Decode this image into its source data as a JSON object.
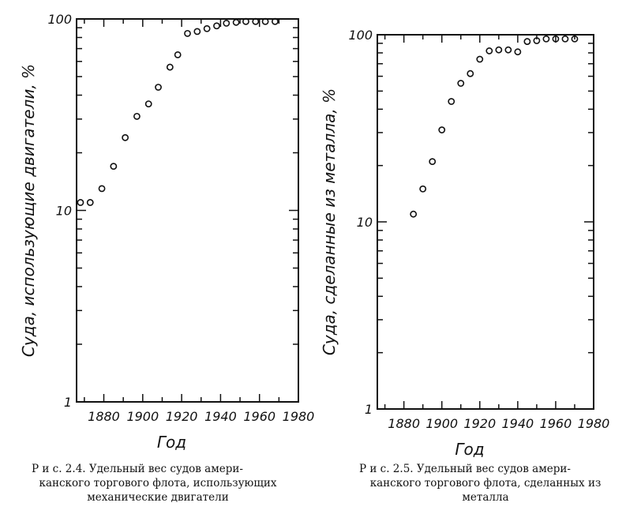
{
  "chart_data": [
    {
      "type": "scatter",
      "title": "",
      "xlabel": "Год",
      "ylabel": "Суда, использующие двигатели, %",
      "x_scale": "linear",
      "y_scale": "log",
      "xlim": [
        1866,
        1980
      ],
      "ylim": [
        1,
        100
      ],
      "x_ticks": [
        1880,
        1900,
        1920,
        1940,
        1960,
        1980
      ],
      "y_ticks": [
        1,
        10,
        100
      ],
      "x": [
        1868,
        1873,
        1879,
        1885,
        1891,
        1897,
        1903,
        1908,
        1914,
        1918,
        1923,
        1928,
        1933,
        1938,
        1943,
        1948,
        1953,
        1958,
        1963,
        1968
      ],
      "y": [
        11,
        11,
        13,
        17,
        24,
        31,
        36,
        44,
        56,
        65,
        84,
        86,
        89,
        92,
        95,
        96,
        97,
        97,
        97,
        97
      ],
      "caption": {
        "line1": "Р и с. 2.4.  Удельный вес судов амери-",
        "line2": "канского торгового флота, использующих",
        "line3": "механические двигатели"
      }
    },
    {
      "type": "scatter",
      "title": "",
      "xlabel": "Год",
      "ylabel": "Суда, сделанные из металла, %",
      "x_scale": "linear",
      "y_scale": "log",
      "xlim": [
        1866,
        1980
      ],
      "ylim": [
        1,
        100
      ],
      "x_ticks": [
        1880,
        1900,
        1920,
        1940,
        1960,
        1980
      ],
      "y_ticks": [
        1,
        10,
        100
      ],
      "x": [
        1885,
        1890,
        1895,
        1900,
        1905,
        1910,
        1915,
        1920,
        1925,
        1930,
        1935,
        1940,
        1945,
        1950,
        1955,
        1960,
        1965,
        1970
      ],
      "y": [
        11,
        15,
        21,
        31,
        44,
        55,
        62,
        74,
        82,
        83,
        83,
        81,
        92,
        93,
        95,
        95,
        95,
        95
      ],
      "caption": {
        "line1": "Р и с. 2.5.  Удельный вес судов амери-",
        "line2": "канского торгового флота, сделанных из",
        "line3": "металла"
      }
    }
  ]
}
